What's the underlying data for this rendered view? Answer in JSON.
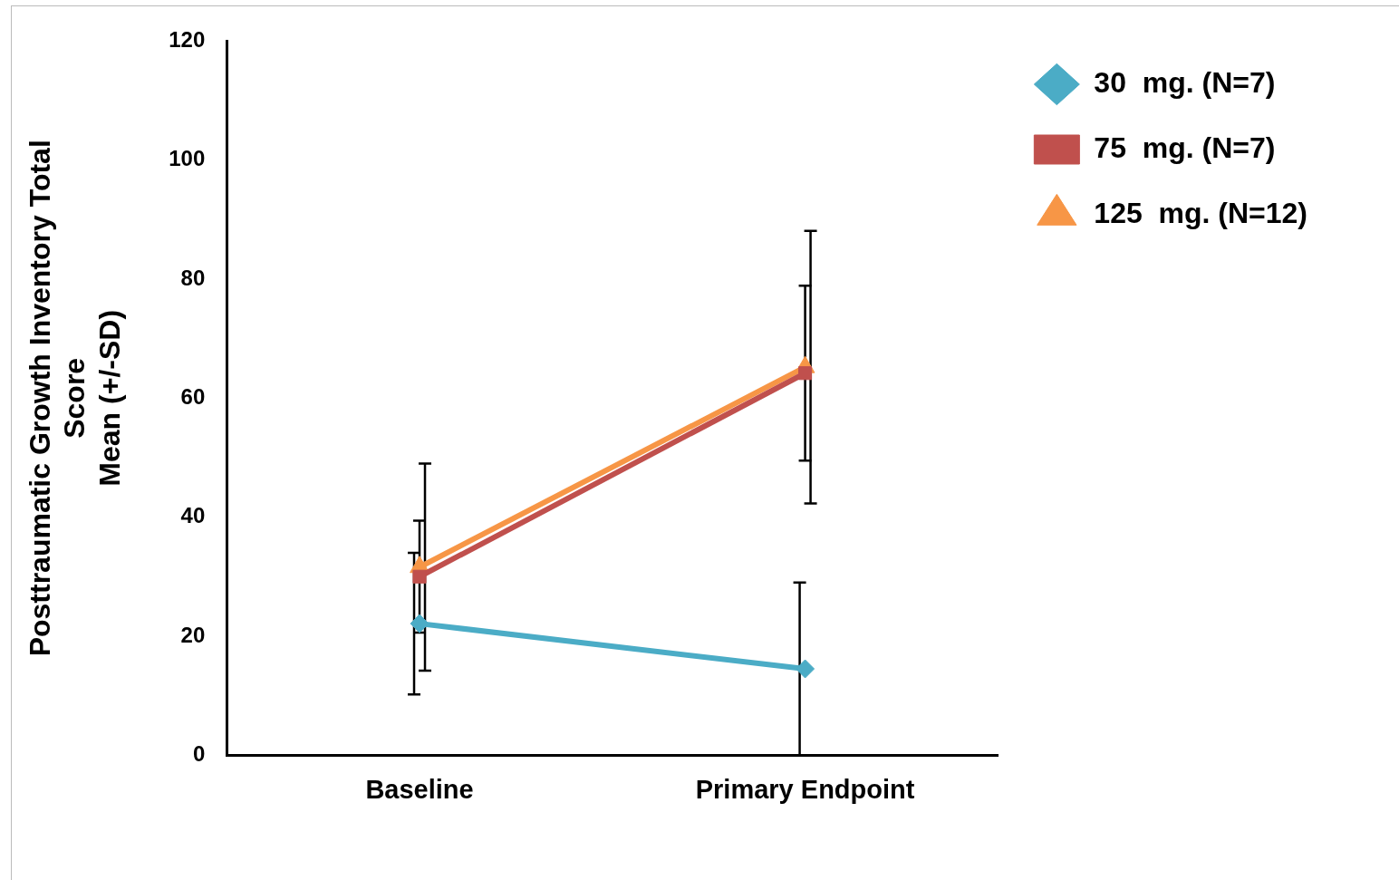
{
  "chart_data": {
    "type": "line",
    "ylabel": "Posttraumatic Growth Inventory Total\nScore\nMean (+/-SD)",
    "categories": [
      "Baseline",
      "Primary Endpoint"
    ],
    "series": [
      {
        "name": "30  mg. (N=7)",
        "color": "#4bacc6",
        "values": [
          22.1,
          14.5
        ],
        "errors": [
          11.9,
          14.5
        ],
        "marker": "diamond"
      },
      {
        "name": "75  mg. (N=7)",
        "color": "#c0504d",
        "values": [
          30,
          64.2
        ],
        "errors": [
          9.4,
          14.7
        ],
        "marker": "square"
      },
      {
        "name": "125  mg. (N=12)",
        "color": "#f79646",
        "values": [
          31.6,
          65.2
        ],
        "errors": [
          17.4,
          22.9
        ],
        "marker": "triangle"
      }
    ],
    "ylim": [
      0,
      120
    ],
    "yticks": [
      0,
      20,
      40,
      60,
      80,
      100,
      120
    ],
    "grid": false,
    "legend": "top right",
    "line_style": "solid"
  }
}
